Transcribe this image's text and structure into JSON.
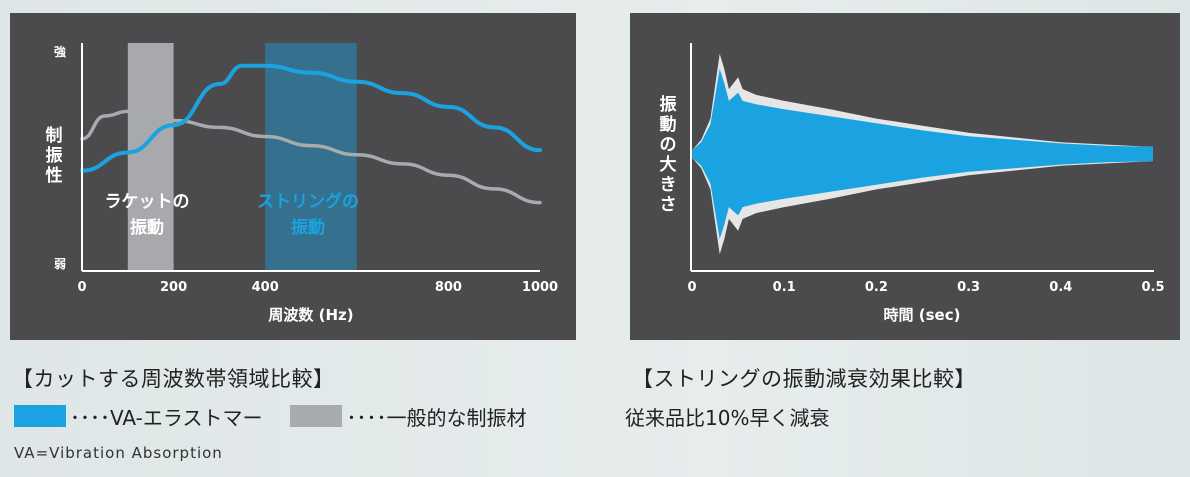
{
  "colors": {
    "panel_bg": "#4b4b4d",
    "va_blue": "#1aa3e0",
    "generic_gray": "#a8abae",
    "text_white": "#ffffff"
  },
  "left_chart_labels": {
    "y_top": "強",
    "y_mid": [
      "制",
      "振",
      "性"
    ],
    "y_bottom": "弱",
    "band1": [
      "ラケットの",
      "振動"
    ],
    "band2": [
      "ストリングの",
      "振動"
    ]
  },
  "right_chart_labels": {
    "y_title": [
      "振",
      "動",
      "の",
      "大",
      "き",
      "さ"
    ]
  },
  "captions": {
    "left": "【カットする周波数帯領域比較】",
    "right": "【ストリングの振動減衰効果比較】"
  },
  "legend": {
    "va_label": "････VA-エラストマー",
    "generic_label": "････一般的な制振材",
    "note": "従来品比10%早く減衰"
  },
  "footnote": "VA=Vibration Absorption",
  "chart_data": [
    {
      "type": "line",
      "xlabel": "周波数 (Hz)",
      "ylabel": "制振性",
      "xlim": [
        0,
        1000
      ],
      "ylim": [
        0,
        1
      ],
      "xticks": [
        "0",
        "200",
        "400",
        "800",
        "1000"
      ],
      "xtick_values": [
        0,
        200,
        400,
        800,
        1000
      ],
      "shaded_bands": [
        {
          "label": "ラケットの振動",
          "x": [
            100,
            200
          ],
          "color": "#b8babd"
        },
        {
          "label": "ストリングの振動",
          "x": [
            400,
            600
          ],
          "color": "#2e7ca6"
        }
      ],
      "series": [
        {
          "color": "#1aa3e0",
          "x": [
            0,
            100,
            200,
            300,
            350,
            400,
            500,
            600,
            700,
            800,
            900,
            1000
          ],
          "y": [
            0.44,
            0.52,
            0.64,
            0.82,
            0.9,
            0.9,
            0.87,
            0.83,
            0.78,
            0.72,
            0.63,
            0.53
          ]
        },
        {
          "color": "#a8abae",
          "x": [
            0,
            50,
            100,
            150,
            200,
            300,
            400,
            500,
            600,
            700,
            800,
            900,
            1000
          ],
          "y": [
            0.58,
            0.68,
            0.7,
            0.68,
            0.66,
            0.63,
            0.59,
            0.55,
            0.51,
            0.47,
            0.42,
            0.36,
            0.3
          ]
        }
      ]
    },
    {
      "type": "area",
      "xlabel": "時間 (sec)",
      "ylabel": "振動の大きさ",
      "xlim": [
        0,
        0.5
      ],
      "xticks": [
        "0",
        "0.1",
        "0.2",
        "0.3",
        "0.4",
        "0.5"
      ],
      "xtick_values": [
        0,
        0.1,
        0.2,
        0.3,
        0.4,
        0.5
      ],
      "ylim": [
        -1,
        1
      ],
      "series": [
        {
          "color": "#e6e6e6",
          "x": [
            0,
            0.01,
            0.02,
            0.03,
            0.035,
            0.04,
            0.05,
            0.055,
            0.07,
            0.1,
            0.15,
            0.2,
            0.25,
            0.3,
            0.35,
            0.4,
            0.45,
            0.5
          ],
          "y": [
            0.03,
            0.12,
            0.3,
            0.85,
            0.72,
            0.55,
            0.65,
            0.55,
            0.5,
            0.45,
            0.38,
            0.3,
            0.24,
            0.18,
            0.14,
            0.1,
            0.08,
            0.06
          ]
        },
        {
          "color": "#1aa3e0",
          "x": [
            0,
            0.01,
            0.02,
            0.03,
            0.035,
            0.04,
            0.05,
            0.055,
            0.07,
            0.1,
            0.15,
            0.2,
            0.25,
            0.3,
            0.35,
            0.4,
            0.45,
            0.5
          ],
          "y": [
            0.03,
            0.1,
            0.25,
            0.72,
            0.6,
            0.45,
            0.52,
            0.45,
            0.42,
            0.38,
            0.32,
            0.26,
            0.2,
            0.15,
            0.12,
            0.09,
            0.07,
            0.06
          ]
        }
      ]
    }
  ]
}
